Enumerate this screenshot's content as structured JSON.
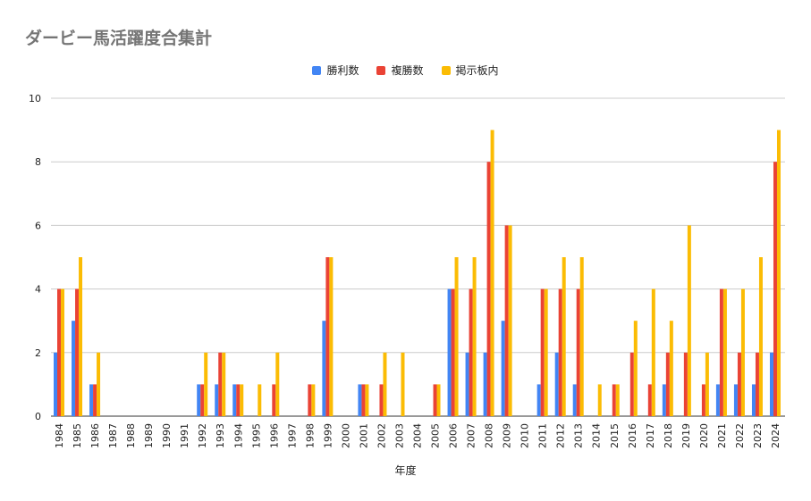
{
  "colors": {
    "win": "#4285f4",
    "place": "#ea4335",
    "board": "#fbbc04",
    "grid": "#cccccc",
    "axis": "#333333"
  },
  "chart_data": {
    "type": "bar",
    "title": "ダービー馬活躍度合集計",
    "xlabel": "年度",
    "ylabel": "",
    "ylim": [
      0,
      10
    ],
    "yticks": [
      0,
      2,
      4,
      6,
      8,
      10
    ],
    "legend_position": "top-center",
    "grid": true,
    "categories": [
      "1984",
      "1985",
      "1986",
      "1987",
      "1988",
      "1989",
      "1990",
      "1991",
      "1992",
      "1993",
      "1994",
      "1995",
      "1996",
      "1997",
      "1998",
      "1999",
      "2000",
      "2001",
      "2002",
      "2003",
      "2004",
      "2005",
      "2006",
      "2007",
      "2008",
      "2009",
      "2010",
      "2011",
      "2012",
      "2013",
      "2014",
      "2015",
      "2016",
      "2017",
      "2018",
      "2019",
      "2020",
      "2021",
      "2022",
      "2023",
      "2024"
    ],
    "series": [
      {
        "name": "勝利数",
        "color": "#4285f4",
        "values": [
          2,
          3,
          1,
          0,
          0,
          0,
          0,
          0,
          1,
          1,
          1,
          0,
          0,
          0,
          0,
          3,
          0,
          1,
          0,
          0,
          0,
          0,
          4,
          2,
          2,
          3,
          0,
          1,
          2,
          1,
          0,
          0,
          0,
          0,
          1,
          0,
          0,
          1,
          1,
          1,
          2
        ]
      },
      {
        "name": "複勝数",
        "color": "#ea4335",
        "values": [
          4,
          4,
          1,
          0,
          0,
          0,
          0,
          0,
          1,
          2,
          1,
          0,
          1,
          0,
          1,
          5,
          0,
          1,
          1,
          0,
          0,
          1,
          4,
          4,
          8,
          6,
          0,
          4,
          4,
          4,
          0,
          1,
          2,
          1,
          2,
          2,
          1,
          4,
          2,
          2,
          8
        ]
      },
      {
        "name": "掲示板内",
        "color": "#fbbc04",
        "values": [
          4,
          5,
          2,
          0,
          0,
          0,
          0,
          0,
          2,
          2,
          1,
          1,
          2,
          0,
          1,
          5,
          0,
          1,
          2,
          2,
          0,
          1,
          5,
          5,
          9,
          6,
          0,
          4,
          5,
          5,
          1,
          1,
          3,
          4,
          3,
          6,
          2,
          4,
          4,
          5,
          9
        ]
      }
    ]
  }
}
